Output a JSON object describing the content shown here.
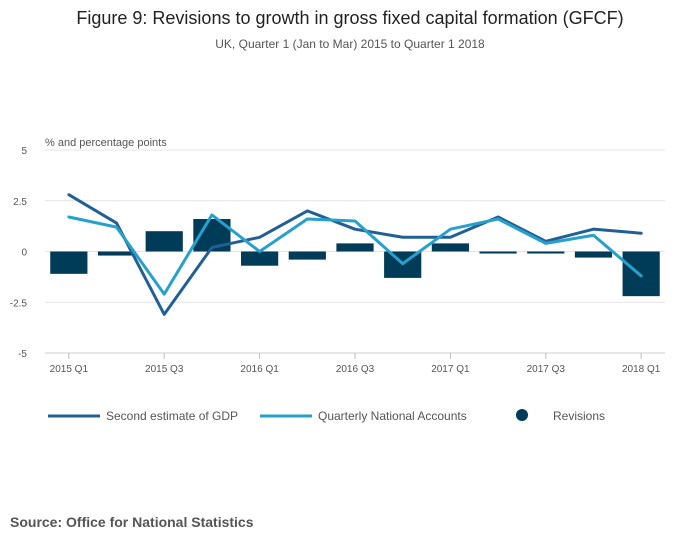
{
  "title": "Figure 9: Revisions to growth in gross fixed capital formation (GFCF)",
  "subtitle": "UK, Quarter 1 (Jan to Mar) 2015 to Quarter 1 2018",
  "source": "Source: Office for National Statistics",
  "chart_data": {
    "type": "bar+line",
    "ylabel": "% and percentage points",
    "ylim": [
      -5,
      5
    ],
    "yticks": [
      5,
      2.5,
      0,
      -2.5,
      -5
    ],
    "ytick_labels": [
      "5",
      "2.5",
      "0",
      "-2.5",
      "-5"
    ],
    "categories": [
      "2015 Q1",
      "2015 Q2",
      "2015 Q3",
      "2015 Q4",
      "2016 Q1",
      "2016 Q2",
      "2016 Q3",
      "2016 Q4",
      "2017 Q1",
      "2017 Q2",
      "2017 Q3",
      "2017 Q4",
      "2018 Q1"
    ],
    "xtick_labels": [
      "2015 Q1",
      "",
      "2015 Q3",
      "",
      "2016 Q1",
      "",
      "2016 Q3",
      "",
      "2017 Q1",
      "",
      "2017 Q3",
      "",
      "2018 Q1"
    ],
    "grid": true,
    "legend_position": "bottom",
    "series": [
      {
        "name": "Second estimate of GDP",
        "kind": "line",
        "color": "#206095",
        "values": [
          2.8,
          1.4,
          -3.1,
          0.2,
          0.7,
          2.0,
          1.1,
          0.7,
          0.7,
          1.7,
          0.5,
          1.1,
          0.9
        ]
      },
      {
        "name": "Quarterly National Accounts",
        "kind": "line",
        "color": "#27a0cc",
        "values": [
          1.7,
          1.2,
          -2.1,
          1.8,
          0.0,
          1.6,
          1.5,
          -0.6,
          1.1,
          1.6,
          0.4,
          0.8,
          -1.2
        ]
      },
      {
        "name": "Revisions",
        "kind": "bar",
        "color": "#003c57",
        "values": [
          -1.1,
          -0.2,
          1.0,
          1.6,
          -0.7,
          -0.4,
          0.4,
          -1.3,
          0.4,
          -0.1,
          -0.1,
          -0.3,
          -2.2
        ]
      }
    ]
  }
}
